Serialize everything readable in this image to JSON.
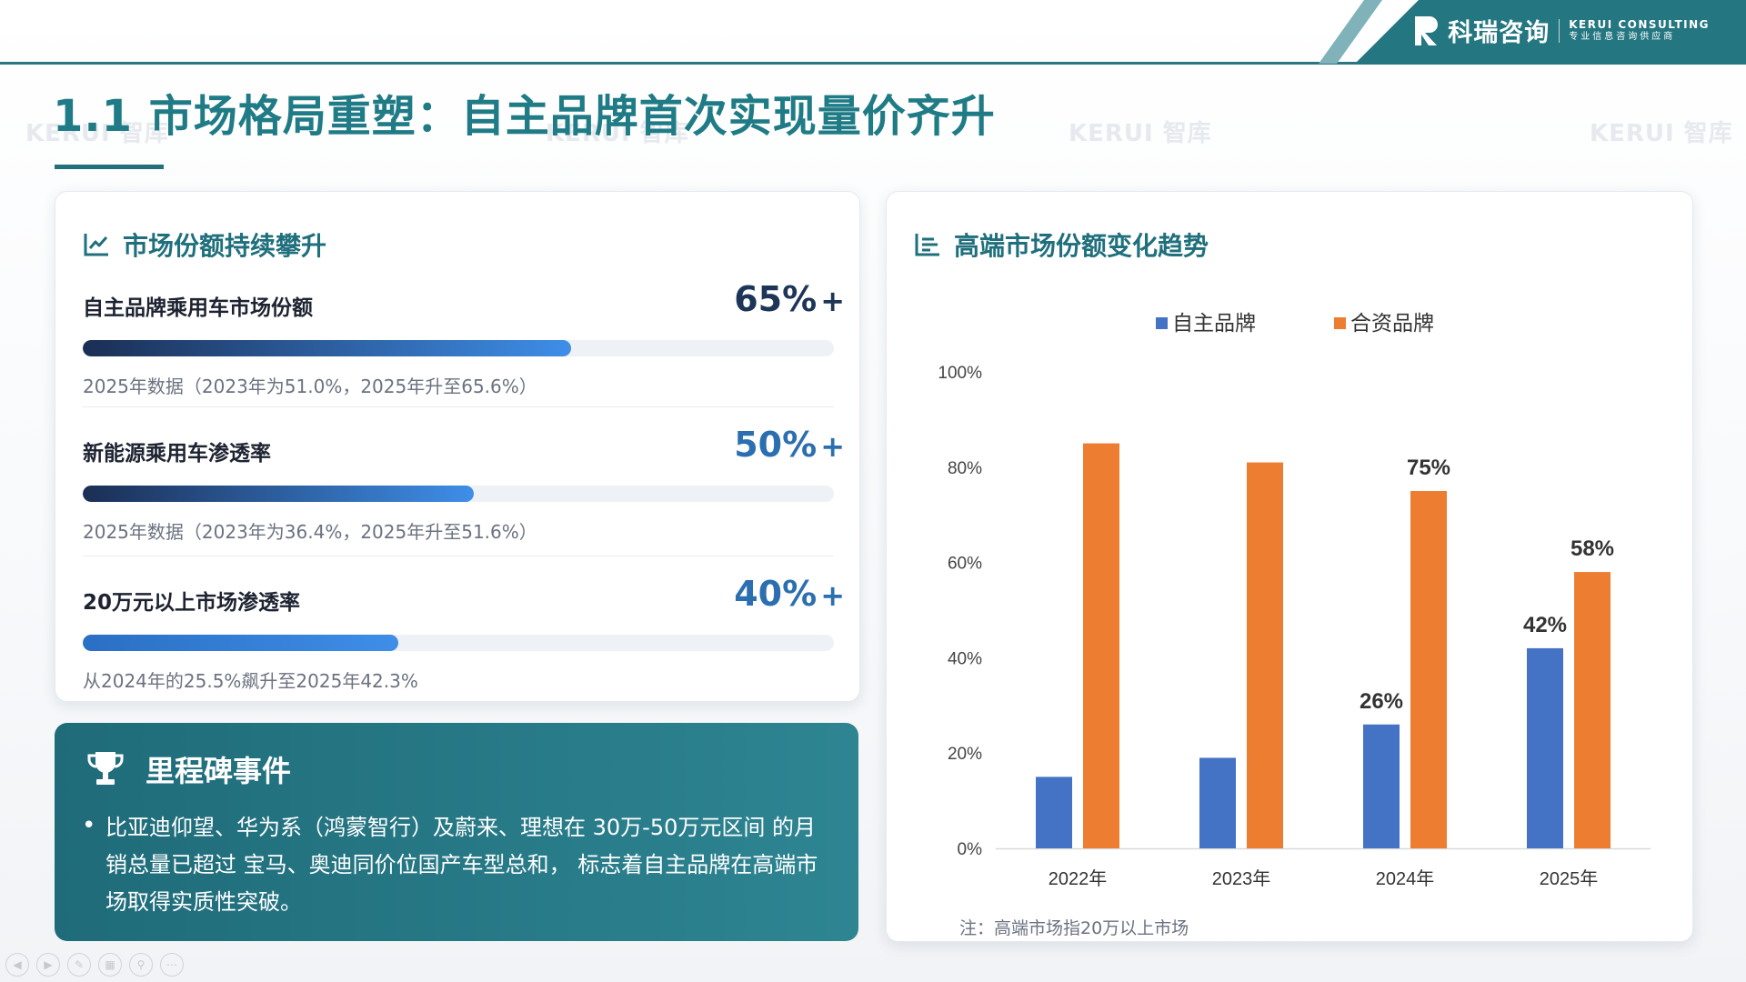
{
  "brand": {
    "name_cn": "科瑞咨询",
    "name_en": "KERUI CONSULTING",
    "tagline": "专业信息咨询供应商",
    "watermark": "KERUI 智库"
  },
  "page_title": "1.1 市场格局重塑：自主品牌首次实现量价齐升",
  "left_card": {
    "title": "市场份额持续攀升",
    "metrics": [
      {
        "label": "自主品牌乘用车市场份额",
        "value": "65%",
        "plus": "+",
        "fill_fraction": 0.65,
        "value_color": "#1d3557",
        "note": "2025年数据（2023年为51.0%，2025年升至65.6%）"
      },
      {
        "label": "新能源乘用车渗透率",
        "value": "50%",
        "plus": "+",
        "fill_fraction": 0.52,
        "value_color": "#2c6fb0",
        "note": "2025年数据（2023年为36.4%，2025年升至51.6%）"
      },
      {
        "label": "20万元以上市场渗透率",
        "value": "40%",
        "plus": "+",
        "fill_fraction": 0.42,
        "value_color": "#2c6fb0",
        "note": "从2024年的25.5%飙升至2025年42.3%"
      }
    ]
  },
  "milestone": {
    "title": "里程碑事件",
    "text": "比亚迪仰望、华为系（鸿蒙智行）及蔚来、理想在 30万-50万元区间 的月销总量已超过 宝马、奥迪同价位国产车型总和， 标志着自主品牌在高端市场取得实质性突破。",
    "bullet": "•"
  },
  "right_card": {
    "title": "高端市场份额变化趋势",
    "note": "注：高端市场指20万以上市场"
  },
  "chart_data": {
    "type": "bar",
    "categories": [
      "2022年",
      "2023年",
      "2024年",
      "2025年"
    ],
    "series": [
      {
        "name": "自主品牌",
        "values": [
          15,
          19,
          26,
          42
        ],
        "color": "#4472c4",
        "data_labels": [
          "",
          "",
          "26%",
          "42%"
        ]
      },
      {
        "name": "合资品牌",
        "values": [
          85,
          81,
          75,
          58
        ],
        "color": "#ed7d31",
        "data_labels": [
          "",
          "",
          "75%",
          "58%"
        ]
      }
    ],
    "y_ticks": [
      "0%",
      "20%",
      "40%",
      "60%",
      "80%",
      "100%"
    ],
    "ylim": [
      0,
      100
    ],
    "legend": "top-center",
    "grid": false
  },
  "colors": {
    "accent": "#1f7b85",
    "band": "#247680"
  },
  "toolbar_icons": [
    "prev-icon",
    "next-icon",
    "pen-icon",
    "slides-icon",
    "zoom-icon",
    "more-icon"
  ]
}
